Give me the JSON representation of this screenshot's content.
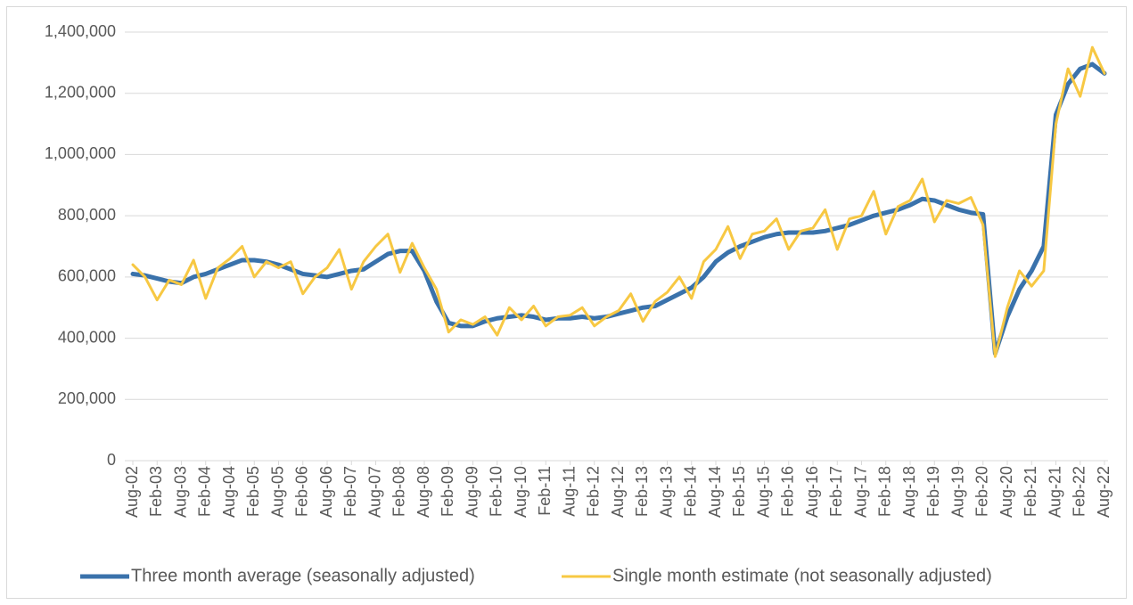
{
  "chart_data": {
    "type": "line",
    "categories": [
      "Aug-02",
      null,
      "Feb-03",
      null,
      "Aug-03",
      null,
      "Feb-04",
      null,
      "Aug-04",
      null,
      "Feb-05",
      null,
      "Aug-05",
      null,
      "Feb-06",
      null,
      "Aug-06",
      null,
      "Feb-07",
      null,
      "Aug-07",
      null,
      "Feb-08",
      null,
      "Aug-08",
      null,
      "Feb-09",
      null,
      "Aug-09",
      null,
      "Feb-10",
      null,
      "Aug-10",
      null,
      "Feb-11",
      null,
      "Aug-11",
      null,
      "Feb-12",
      null,
      "Aug-12",
      null,
      "Feb-13",
      null,
      "Aug-13",
      null,
      "Feb-14",
      null,
      "Aug-14",
      null,
      "Feb-15",
      null,
      "Aug-15",
      null,
      "Feb-16",
      null,
      "Aug-16",
      null,
      "Feb-17",
      null,
      "Aug-17",
      null,
      "Feb-18",
      null,
      "Aug-18",
      null,
      "Feb-19",
      null,
      "Aug-19",
      null,
      "Feb-20",
      null,
      "Aug-20",
      null,
      "Feb-21",
      null,
      "Aug-21",
      null,
      "Feb-22",
      null,
      "Aug-22"
    ],
    "series": [
      {
        "name": "Three month average (seasonally adjusted)",
        "color": "#3a72ab",
        "values": [
          610000,
          605000,
          595000,
          585000,
          580000,
          600000,
          610000,
          625000,
          640000,
          655000,
          655000,
          650000,
          640000,
          625000,
          610000,
          605000,
          600000,
          610000,
          620000,
          625000,
          650000,
          675000,
          685000,
          685000,
          620000,
          520000,
          450000,
          440000,
          440000,
          455000,
          465000,
          470000,
          475000,
          470000,
          460000,
          465000,
          465000,
          470000,
          465000,
          470000,
          480000,
          490000,
          500000,
          505000,
          525000,
          545000,
          565000,
          600000,
          650000,
          680000,
          700000,
          715000,
          730000,
          740000,
          745000,
          745000,
          745000,
          750000,
          760000,
          770000,
          785000,
          800000,
          810000,
          820000,
          835000,
          855000,
          850000,
          835000,
          820000,
          810000,
          805000,
          350000,
          470000,
          560000,
          620000,
          700000,
          1130000,
          1230000,
          1280000,
          1295000,
          1265000
        ]
      },
      {
        "name": "Single month estimate (not seasonally adjusted)",
        "color": "#f7c843",
        "values": [
          640000,
          600000,
          525000,
          590000,
          575000,
          655000,
          530000,
          630000,
          660000,
          700000,
          600000,
          650000,
          630000,
          650000,
          545000,
          600000,
          630000,
          690000,
          560000,
          650000,
          700000,
          740000,
          615000,
          710000,
          630000,
          560000,
          420000,
          460000,
          445000,
          470000,
          410000,
          500000,
          460000,
          505000,
          440000,
          470000,
          475000,
          500000,
          440000,
          470000,
          490000,
          545000,
          455000,
          520000,
          550000,
          600000,
          530000,
          650000,
          690000,
          765000,
          660000,
          740000,
          750000,
          790000,
          690000,
          750000,
          760000,
          820000,
          690000,
          790000,
          800000,
          880000,
          740000,
          830000,
          850000,
          920000,
          780000,
          850000,
          840000,
          860000,
          770000,
          340000,
          500000,
          620000,
          570000,
          620000,
          1100000,
          1280000,
          1190000,
          1350000,
          1265000
        ]
      }
    ],
    "ylim": [
      0,
      1400000
    ],
    "yticks": [
      0,
      {
        "value": 200000,
        "label": "200,000"
      },
      {
        "value": 400000,
        "label": "400,000"
      },
      {
        "value": 600000,
        "label": "600,000"
      },
      {
        "value": 800000,
        "label": "800,000"
      },
      {
        "value": 1000000,
        "label": "1,000,000"
      },
      {
        "value": 1200000,
        "label": "1,200,000"
      },
      {
        "value": 1400000,
        "label": "1,400,000"
      }
    ],
    "grid": true,
    "legend": "bottom"
  }
}
